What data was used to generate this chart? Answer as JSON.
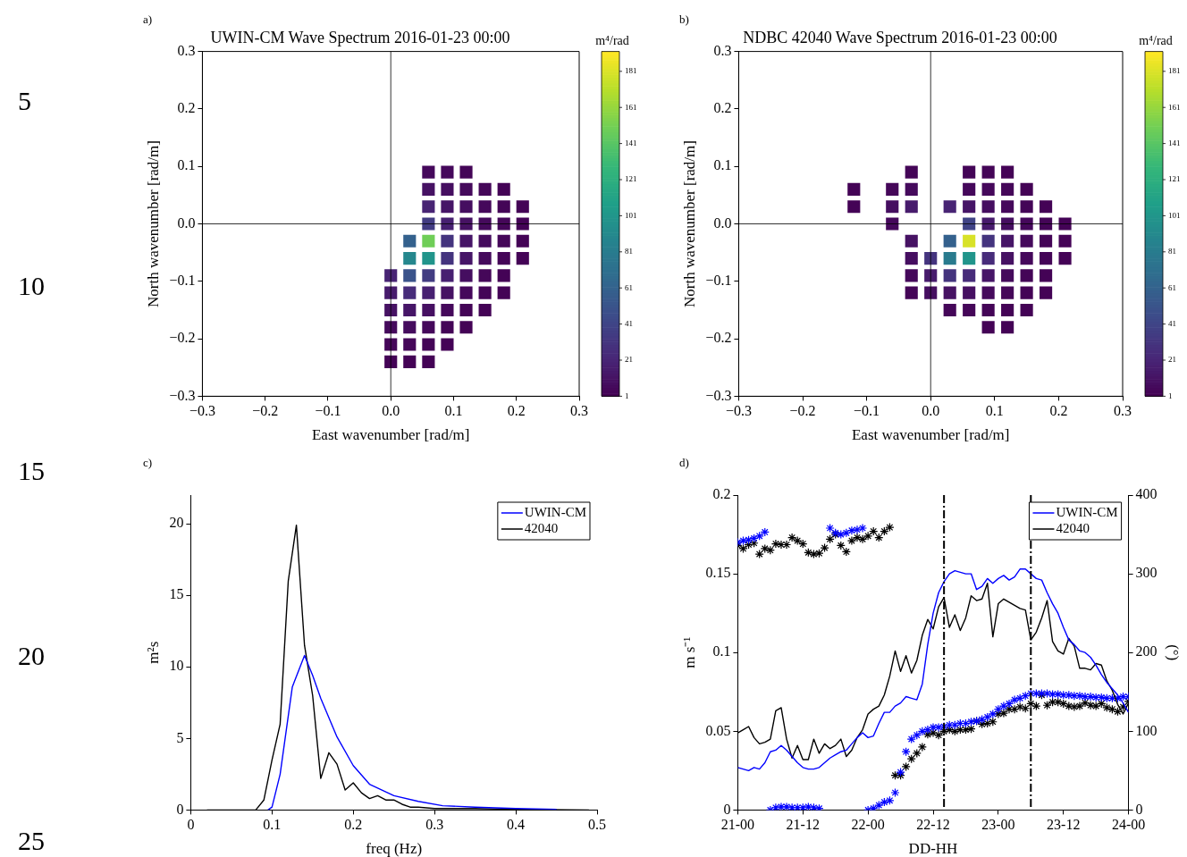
{
  "chart_data": [
    {
      "type": "scatter",
      "title": "UWIN-CM Wave Spectrum 2016-01-23 00:00",
      "xlabel": "East wavenumber [rad/m]",
      "ylabel": "North wavenumber [rad/m]",
      "clabel": "m⁴/rad",
      "annotations": [
        "a)",
        "5",
        "10",
        "15",
        "20",
        "25"
      ],
      "marker": "square",
      "x": [
        0.06,
        0.09,
        0.12,
        0.06,
        0.09,
        0.12,
        0.15,
        0.18,
        0.06,
        0.09,
        0.12,
        0.15,
        0.18,
        0.21,
        0.06,
        0.09,
        0.12,
        0.15,
        0.18,
        0.21,
        0.03,
        0.06,
        0.09,
        0.12,
        0.15,
        0.18,
        0.21,
        0.03,
        0.06,
        0.09,
        0.12,
        0.15,
        0.18,
        0.21,
        0.0,
        0.03,
        0.06,
        0.09,
        0.12,
        0.15,
        0.18,
        0.0,
        0.03,
        0.06,
        0.09,
        0.12,
        0.15,
        0.18,
        0.0,
        0.03,
        0.06,
        0.09,
        0.12,
        0.15,
        0.0,
        0.03,
        0.06,
        0.09,
        0.12,
        0.0,
        0.03,
        0.06,
        0.09,
        0.0,
        0.03,
        0.06
      ],
      "values": [
        0.09,
        0.09,
        0.09,
        0.06,
        0.06,
        0.06,
        0.06,
        0.06,
        0.03,
        0.03,
        0.03,
        0.03,
        0.03,
        0.03,
        0.0,
        0.0,
        0.0,
        0.0,
        0.0,
        0.0,
        -0.03,
        -0.03,
        -0.03,
        -0.03,
        -0.03,
        -0.03,
        -0.03,
        -0.06,
        -0.06,
        -0.06,
        -0.06,
        -0.06,
        -0.06,
        -0.06,
        -0.09,
        -0.09,
        -0.09,
        -0.09,
        -0.09,
        -0.09,
        -0.09,
        -0.12,
        -0.12,
        -0.12,
        -0.12,
        -0.12,
        -0.12,
        -0.12,
        -0.15,
        -0.15,
        -0.15,
        -0.15,
        -0.15,
        -0.15,
        -0.18,
        -0.18,
        -0.18,
        -0.18,
        -0.18,
        -0.21,
        -0.21,
        -0.21,
        -0.21,
        -0.24,
        -0.24,
        -0.24
      ],
      "cvalues": [
        5,
        5,
        3,
        10,
        8,
        6,
        4,
        2,
        20,
        12,
        8,
        5,
        3,
        2,
        35,
        18,
        10,
        6,
        4,
        2,
        60,
        150,
        30,
        12,
        7,
        4,
        2,
        90,
        100,
        30,
        12,
        6,
        3,
        2,
        20,
        50,
        35,
        18,
        8,
        4,
        2,
        15,
        25,
        18,
        10,
        5,
        3,
        2,
        10,
        12,
        9,
        5,
        3,
        2,
        6,
        7,
        5,
        3,
        2,
        4,
        4,
        3,
        2,
        2,
        2,
        2
      ],
      "clim": [
        1,
        192
      ],
      "cticks": [
        1,
        21,
        41,
        61,
        81,
        101,
        121,
        141,
        161,
        181
      ],
      "xlim": [
        -0.3,
        0.3
      ],
      "xticks": [
        {
          "value": -0.3,
          "label": "−0.3"
        },
        {
          "value": -0.2,
          "label": "−0.2"
        },
        {
          "value": -0.1,
          "label": "−0.1"
        },
        {
          "value": 0,
          "label": "0.0"
        },
        0.1,
        0.2,
        0.3
      ],
      "ylim": [
        -0.3,
        0.3
      ],
      "yticks": [
        {
          "value": -0.3,
          "label": "−0.3"
        },
        {
          "value": -0.2,
          "label": "−0.2"
        },
        {
          "value": -0.1,
          "label": "−0.1"
        },
        {
          "value": 0,
          "label": "0.0"
        },
        0.1,
        0.2,
        0.3
      ],
      "ref_lines": [
        {
          "axis": "x",
          "value": 0,
          "color": "#000000"
        },
        {
          "axis": "y",
          "value": 0,
          "color": "#000000"
        }
      ]
    },
    {
      "type": "scatter",
      "title": "NDBC 42040 Wave Spectrum 2016-01-23 00:00",
      "xlabel": "East wavenumber [rad/m]",
      "ylabel": "North wavenumber [rad/m]",
      "clabel": "m⁴/rad",
      "annotations": [
        "b)"
      ],
      "marker": "square",
      "x": [
        -0.03,
        0.06,
        0.09,
        0.12,
        -0.12,
        -0.06,
        -0.03,
        0.06,
        0.09,
        0.12,
        0.15,
        -0.12,
        -0.06,
        -0.03,
        0.03,
        0.06,
        0.09,
        0.12,
        0.15,
        0.18,
        -0.06,
        0.06,
        0.09,
        0.12,
        0.15,
        0.18,
        0.21,
        -0.03,
        0.03,
        0.06,
        0.09,
        0.12,
        0.15,
        0.18,
        0.21,
        -0.03,
        0.0,
        0.03,
        0.06,
        0.09,
        0.12,
        0.15,
        0.18,
        0.21,
        -0.03,
        0.0,
        0.03,
        0.06,
        0.09,
        0.12,
        0.15,
        0.18,
        -0.03,
        0.0,
        0.03,
        0.06,
        0.09,
        0.12,
        0.15,
        0.18,
        0.03,
        0.06,
        0.09,
        0.12,
        0.15,
        0.09,
        0.12
      ],
      "values": [
        0.09,
        0.09,
        0.09,
        0.09,
        0.06,
        0.06,
        0.06,
        0.06,
        0.06,
        0.06,
        0.06,
        0.03,
        0.03,
        0.03,
        0.03,
        0.03,
        0.03,
        0.03,
        0.03,
        0.03,
        0.0,
        0.0,
        0.0,
        0.0,
        0.0,
        0.0,
        0.0,
        -0.03,
        -0.03,
        -0.03,
        -0.03,
        -0.03,
        -0.03,
        -0.03,
        -0.03,
        -0.06,
        -0.06,
        -0.06,
        -0.06,
        -0.06,
        -0.06,
        -0.06,
        -0.06,
        -0.06,
        -0.09,
        -0.09,
        -0.09,
        -0.09,
        -0.09,
        -0.09,
        -0.09,
        -0.09,
        -0.12,
        -0.12,
        -0.12,
        -0.12,
        -0.12,
        -0.12,
        -0.12,
        -0.12,
        -0.15,
        -0.15,
        -0.15,
        -0.15,
        -0.15,
        -0.18,
        -0.18
      ],
      "cvalues": [
        3,
        3,
        3,
        2,
        2,
        4,
        6,
        5,
        5,
        4,
        2,
        2,
        8,
        15,
        20,
        12,
        8,
        5,
        3,
        2,
        5,
        40,
        15,
        8,
        5,
        3,
        2,
        10,
        60,
        181,
        30,
        12,
        6,
        3,
        2,
        8,
        30,
        80,
        100,
        25,
        10,
        5,
        3,
        2,
        5,
        15,
        30,
        25,
        12,
        6,
        3,
        2,
        3,
        8,
        10,
        9,
        6,
        4,
        2,
        2,
        4,
        4,
        3,
        2,
        2,
        2,
        2
      ],
      "clim": [
        1,
        192
      ],
      "cticks": [
        1,
        21,
        41,
        61,
        81,
        101,
        121,
        141,
        161,
        181
      ],
      "xlim": [
        -0.3,
        0.3
      ],
      "xticks": [
        {
          "value": -0.3,
          "label": "−0.3"
        },
        {
          "value": -0.2,
          "label": "−0.2"
        },
        {
          "value": -0.1,
          "label": "−0.1"
        },
        {
          "value": 0,
          "label": "0.0"
        },
        0.1,
        0.2,
        0.3
      ],
      "ylim": [
        -0.3,
        0.3
      ],
      "yticks": [
        {
          "value": -0.3,
          "label": "−0.3"
        },
        {
          "value": -0.2,
          "label": "−0.2"
        },
        {
          "value": -0.1,
          "label": "−0.1"
        },
        {
          "value": 0,
          "label": "0.0"
        },
        0.1,
        0.2,
        0.3
      ],
      "ref_lines": [
        {
          "axis": "x",
          "value": 0,
          "color": "#000000"
        },
        {
          "axis": "y",
          "value": 0,
          "color": "#000000"
        }
      ]
    },
    {
      "type": "line",
      "xlabel": "freq (Hz)",
      "ylabel": "m²s",
      "annotations": [
        "c)"
      ],
      "legend": "top right",
      "xlim": [
        0,
        0.5
      ],
      "xticks": [
        0,
        0.1,
        0.2,
        0.3,
        0.4,
        0.5
      ],
      "ylim": [
        0,
        22
      ],
      "yticks": [
        0,
        5,
        10,
        15,
        20
      ],
      "series": [
        {
          "name": "UWIN-CM",
          "color": "#0000ff",
          "x": [
            0.095,
            0.1,
            0.11,
            0.125,
            0.14,
            0.15,
            0.16,
            0.18,
            0.2,
            0.22,
            0.25,
            0.28,
            0.31,
            0.35,
            0.4,
            0.45
          ],
          "values": [
            0,
            0.2,
            2.5,
            8.6,
            10.8,
            9.4,
            7.8,
            5.1,
            3.1,
            1.8,
            1.0,
            0.6,
            0.3,
            0.2,
            0.1,
            0.05
          ]
        },
        {
          "name": "42040",
          "color": "#000000",
          "x": [
            0.02,
            0.08,
            0.09,
            0.1,
            0.11,
            0.12,
            0.13,
            0.14,
            0.15,
            0.16,
            0.17,
            0.18,
            0.19,
            0.2,
            0.21,
            0.22,
            0.23,
            0.24,
            0.25,
            0.26,
            0.27,
            0.28,
            0.3,
            0.35,
            0.4,
            0.49
          ],
          "values": [
            0,
            0,
            0.7,
            3.5,
            6,
            16,
            19.9,
            11.5,
            8,
            2.2,
            4,
            3.2,
            1.4,
            1.9,
            1.2,
            0.8,
            1.0,
            0.7,
            0.7,
            0.4,
            0.2,
            0.2,
            0.1,
            0.1,
            0.05,
            0
          ]
        }
      ]
    },
    {
      "type": "line",
      "xlabel": "DD-HH",
      "ylabel": "m s⁻¹",
      "y2label": "(°)",
      "annotations": [
        "d)"
      ],
      "legend": "top right",
      "x": [
        "2016-01-21T00:00",
        "2016-01-21T01:00",
        "2016-01-21T02:00",
        "2016-01-21T03:00",
        "2016-01-21T04:00",
        "2016-01-21T05:00",
        "2016-01-21T06:00",
        "2016-01-21T07:00",
        "2016-01-21T08:00",
        "2016-01-21T09:00",
        "2016-01-21T10:00",
        "2016-01-21T11:00",
        "2016-01-21T12:00",
        "2016-01-21T13:00",
        "2016-01-21T14:00",
        "2016-01-21T15:00",
        "2016-01-21T16:00",
        "2016-01-21T17:00",
        "2016-01-21T18:00",
        "2016-01-21T19:00",
        "2016-01-21T20:00",
        "2016-01-21T21:00",
        "2016-01-21T22:00",
        "2016-01-21T23:00",
        "2016-01-22T00:00",
        "2016-01-22T01:00",
        "2016-01-22T02:00",
        "2016-01-22T03:00",
        "2016-01-22T04:00",
        "2016-01-22T05:00",
        "2016-01-22T06:00",
        "2016-01-22T07:00",
        "2016-01-22T08:00",
        "2016-01-22T09:00",
        "2016-01-22T10:00",
        "2016-01-22T11:00",
        "2016-01-22T12:00",
        "2016-01-22T13:00",
        "2016-01-22T14:00",
        "2016-01-22T15:00",
        "2016-01-22T16:00",
        "2016-01-22T17:00",
        "2016-01-22T18:00",
        "2016-01-22T19:00",
        "2016-01-22T20:00",
        "2016-01-22T21:00",
        "2016-01-22T22:00",
        "2016-01-22T23:00",
        "2016-01-23T00:00",
        "2016-01-23T01:00",
        "2016-01-23T02:00",
        "2016-01-23T03:00",
        "2016-01-23T04:00",
        "2016-01-23T05:00",
        "2016-01-23T06:00",
        "2016-01-23T07:00",
        "2016-01-23T08:00",
        "2016-01-23T09:00",
        "2016-01-23T10:00",
        "2016-01-23T11:00",
        "2016-01-23T12:00",
        "2016-01-23T13:00",
        "2016-01-23T14:00",
        "2016-01-23T15:00",
        "2016-01-23T16:00",
        "2016-01-23T17:00",
        "2016-01-23T18:00",
        "2016-01-23T19:00",
        "2016-01-23T20:00",
        "2016-01-23T21:00",
        "2016-01-23T22:00",
        "2016-01-23T23:00",
        "2016-01-24T00:00"
      ],
      "xlim": [
        "2016-01-21T00:00",
        "2016-01-24T00:00"
      ],
      "xticks": [
        {
          "value": "2016-01-21T00:00",
          "label": "21-00"
        },
        {
          "value": "2016-01-21T12:00",
          "label": "21-12"
        },
        {
          "value": "2016-01-22T00:00",
          "label": "22-00"
        },
        {
          "value": "2016-01-22T12:00",
          "label": "22-12"
        },
        {
          "value": "2016-01-23T00:00",
          "label": "23-00"
        },
        {
          "value": "2016-01-23T12:00",
          "label": "23-12"
        },
        {
          "value": "2016-01-24T00:00",
          "label": "24-00"
        }
      ],
      "ylim": [
        0,
        0.2
      ],
      "yticks": [
        0,
        0.05,
        0.1,
        0.15,
        0.2
      ],
      "y2lim": [
        0,
        400
      ],
      "y2ticks": [
        0,
        100,
        200,
        300,
        400
      ],
      "ref_lines": [
        {
          "axis": "x",
          "value": "2016-01-22T14:00",
          "color": "#000000",
          "line_style": "dashed"
        },
        {
          "axis": "x",
          "value": "2016-01-23T06:00",
          "color": "#000000",
          "line_style": "dashed"
        }
      ],
      "series": [
        {
          "name": "UWIN-CM",
          "color": "#0000ff",
          "values": [
            0.027,
            0.026,
            0.025,
            0.027,
            0.026,
            0.03,
            0.037,
            0.038,
            0.041,
            0.038,
            0.034,
            0.03,
            0.027,
            0.026,
            0.026,
            0.027,
            0.03,
            0.033,
            0.035,
            0.037,
            0.038,
            0.042,
            0.046,
            0.049,
            0.046,
            0.047,
            0.055,
            0.062,
            0.062,
            0.066,
            0.068,
            0.072,
            0.071,
            0.07,
            0.08,
            0.105,
            0.125,
            0.138,
            0.145,
            0.15,
            0.152,
            0.151,
            0.15,
            0.15,
            0.14,
            0.142,
            0.147,
            0.144,
            0.147,
            0.149,
            0.146,
            0.148,
            0.153,
            0.153,
            0.15,
            0.147,
            0.146,
            0.138,
            0.131,
            0.125,
            0.116,
            0.108,
            0.105,
            0.101,
            0.1,
            0.097,
            0.092,
            0.086,
            0.081,
            0.077,
            0.073,
            0.068,
            0.062
          ]
        },
        {
          "name": "42040",
          "color": "#000000",
          "values": [
            0.049,
            0.051,
            0.053,
            0.046,
            0.042,
            0.043,
            0.045,
            0.063,
            0.065,
            0.045,
            0.033,
            0.041,
            0.032,
            0.032,
            0.045,
            0.036,
            0.042,
            0.039,
            0.041,
            0.045,
            0.034,
            0.038,
            0.046,
            0.051,
            0.061,
            0.064,
            0.066,
            0.073,
            0.085,
            0.101,
            0.088,
            0.098,
            0.087,
            0.095,
            0.111,
            0.121,
            0.115,
            0.129,
            0.135,
            0.116,
            0.124,
            0.114,
            0.122,
            0.136,
            0.133,
            0.134,
            0.144,
            0.11,
            0.131,
            0.134,
            0.132,
            0.13,
            0.128,
            0.127,
            0.108,
            0.113,
            0.122,
            0.133,
            0.107,
            0.101,
            0.099,
            0.109,
            0.104,
            0.09,
            0.09,
            0.089,
            0.093,
            0.092,
            0.082,
            0.076,
            0.067,
            0.061,
            0.068
          ]
        },
        {
          "type": "scatter",
          "axis": "y2",
          "color": "#0000ff",
          "marker": "cross",
          "values": [
            340,
            342,
            343,
            345,
            348,
            353,
            0,
            3,
            4,
            4,
            3,
            3,
            3,
            4,
            3,
            2,
            null,
            358,
            352,
            350,
            352,
            355,
            356,
            358,
            0,
            2,
            6,
            10,
            12,
            22,
            48,
            74,
            90,
            95,
            100,
            102,
            105,
            105,
            106,
            108,
            108,
            110,
            110,
            112,
            113,
            115,
            118,
            122,
            128,
            132,
            135,
            140,
            142,
            145,
            148,
            148,
            148,
            148,
            147,
            147,
            146,
            146,
            145,
            145,
            144,
            144,
            143,
            143,
            142,
            142,
            142,
            144,
            144
          ]
        },
        {
          "type": "scatter",
          "axis": "y2",
          "color": "#000000",
          "marker": "cross",
          "values": [
            336,
            332,
            337,
            339,
            325,
            332,
            330,
            338,
            337,
            337,
            346,
            342,
            338,
            327,
            325,
            326,
            333,
            344,
            350,
            336,
            328,
            342,
            346,
            344,
            348,
            354,
            346,
            354,
            359,
            44,
            44,
            55,
            65,
            72,
            80,
            96,
            98,
            95,
            100,
            102,
            100,
            102,
            102,
            103,
            113,
            109,
            110,
            112,
            122,
            123,
            128,
            128,
            131,
            129,
            135,
            132,
            146,
            133,
            137,
            137,
            135,
            132,
            131,
            132,
            136,
            133,
            132,
            135,
            130,
            128,
            125,
            131,
            138
          ]
        }
      ]
    }
  ]
}
